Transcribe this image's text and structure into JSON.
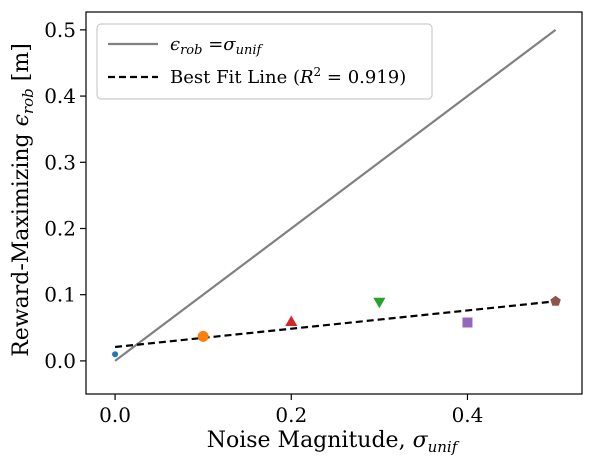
{
  "chart_data": {
    "type": "scatter",
    "title": "",
    "xlabel_main": "Noise Magnitude, ",
    "xlabel_sym": "σ",
    "xlabel_sub": "unif",
    "ylabel_main": "Reward-Maximizing ",
    "ylabel_sym": "ϵ",
    "ylabel_sub": "rob",
    "ylabel_unit": " [m]",
    "xlim": [
      -0.033,
      0.53
    ],
    "ylim": [
      -0.05,
      0.527
    ],
    "xticks": [
      0.0,
      0.2,
      0.4
    ],
    "xtick_labels": [
      "0.0",
      "0.2",
      "0.4"
    ],
    "yticks": [
      0.0,
      0.1,
      0.2,
      0.3,
      0.4,
      0.5
    ],
    "ytick_labels": [
      "0.0",
      "0.1",
      "0.2",
      "0.3",
      "0.4",
      "0.5"
    ],
    "grid": false,
    "legend_position": "top-left",
    "legend": [
      {
        "label_sym": "ϵ",
        "label_sub": "rob",
        "label_eq": " =",
        "label_sym2": "σ",
        "label_sub2": "unif",
        "style": "solid",
        "color": "#808080"
      },
      {
        "label_pre": "Best Fit Line (",
        "label_sym": "R",
        "label_sup": "2",
        "label_post": " = 0.919)",
        "style": "dashed",
        "color": "#000000"
      }
    ],
    "identity_line": {
      "x": [
        0.0,
        0.5
      ],
      "y": [
        0.0,
        0.5
      ],
      "color": "#808080"
    },
    "fit_line": {
      "x": [
        0.0,
        0.5
      ],
      "y": [
        0.021,
        0.09
      ],
      "color": "#000000"
    },
    "points": [
      {
        "x": 0.0,
        "y": 0.01,
        "marker": "circle-small",
        "color": "#1f77b4"
      },
      {
        "x": 0.1,
        "y": 0.037,
        "marker": "circle",
        "color": "#ff7f0e"
      },
      {
        "x": 0.2,
        "y": 0.058,
        "marker": "triangle-up",
        "color": "#d62728"
      },
      {
        "x": 0.3,
        "y": 0.09,
        "marker": "triangle-down",
        "color": "#2ca02c"
      },
      {
        "x": 0.4,
        "y": 0.058,
        "marker": "square",
        "color": "#9467bd"
      },
      {
        "x": 0.5,
        "y": 0.09,
        "marker": "pentagon",
        "color": "#8c564b"
      }
    ]
  }
}
